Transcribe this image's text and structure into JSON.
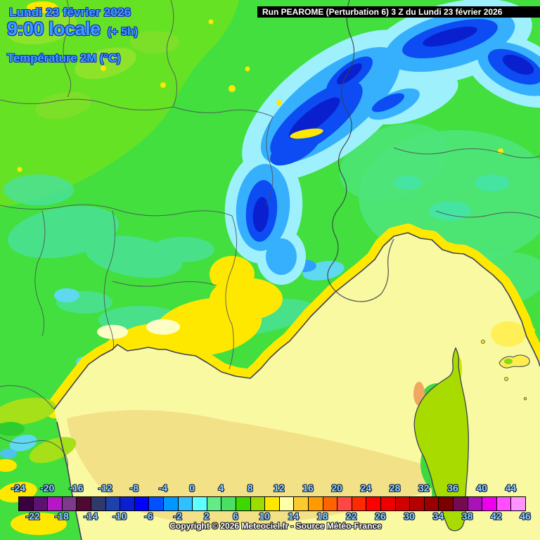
{
  "header": {
    "date_line": "Lundi 23 février 2026",
    "time_line": "9:00 locale",
    "offset_label": "(+ 5h)",
    "param_label": "Température 2M (°C)",
    "run_label": "Run PEAROME (Perturbation 6) 3 Z du Lundi 23 février 2026"
  },
  "footer": {
    "copyright": "Copyright © 2026 Meteociel.fr - Source Météo-France"
  },
  "colors": {
    "header_text": "#38a1ff",
    "header_outline": "#1c2db4",
    "legend_label": "#8ed4ff",
    "run_bar_bg": "#000000",
    "run_bar_text": "#ffffff"
  },
  "legend": {
    "top_labels": [
      "-24",
      "-20",
      "-16",
      "-12",
      "-8",
      "-4",
      "0",
      "4",
      "8",
      "12",
      "16",
      "20",
      "24",
      "28",
      "32",
      "36",
      "40",
      "44"
    ],
    "bottom_labels": [
      "-22",
      "-18",
      "-14",
      "-10",
      "-6",
      "-2",
      "2",
      "6",
      "10",
      "14",
      "18",
      "22",
      "26",
      "30",
      "34",
      "38",
      "42",
      "46"
    ],
    "cells": [
      {
        "min": -24,
        "max": -22,
        "color": "#3a0140"
      },
      {
        "min": -22,
        "max": -20,
        "color": "#5e1170"
      },
      {
        "min": -20,
        "max": -18,
        "color": "#b517c6"
      },
      {
        "min": -18,
        "max": -16,
        "color": "#7c3a8d"
      },
      {
        "min": -16,
        "max": -14,
        "color": "#500a31"
      },
      {
        "min": -14,
        "max": -12,
        "color": "#30386c"
      },
      {
        "min": -12,
        "max": -10,
        "color": "#1e41ae"
      },
      {
        "min": -10,
        "max": -8,
        "color": "#0a1ed2"
      },
      {
        "min": -8,
        "max": -6,
        "color": "#0202fc"
      },
      {
        "min": -6,
        "max": -4,
        "color": "#0051ff"
      },
      {
        "min": -4,
        "max": -2,
        "color": "#0098ff"
      },
      {
        "min": -2,
        "max": 0,
        "color": "#30bfff"
      },
      {
        "min": 0,
        "max": 2,
        "color": "#5dffff"
      },
      {
        "min": 2,
        "max": 4,
        "color": "#63eb85"
      },
      {
        "min": 4,
        "max": 6,
        "color": "#4adf63"
      },
      {
        "min": 6,
        "max": 8,
        "color": "#3cd800"
      },
      {
        "min": 8,
        "max": 10,
        "color": "#9cdc00"
      },
      {
        "min": 10,
        "max": 12,
        "color": "#ffe600"
      },
      {
        "min": 12,
        "max": 14,
        "color": "#ffffa8"
      },
      {
        "min": 14,
        "max": 16,
        "color": "#fbca2e"
      },
      {
        "min": 16,
        "max": 18,
        "color": "#ff9b00"
      },
      {
        "min": 18,
        "max": 20,
        "color": "#ff6400"
      },
      {
        "min": 20,
        "max": 22,
        "color": "#ff4747"
      },
      {
        "min": 22,
        "max": 24,
        "color": "#ff2b00"
      },
      {
        "min": 24,
        "max": 26,
        "color": "#fe0000"
      },
      {
        "min": 26,
        "max": 28,
        "color": "#ee0000"
      },
      {
        "min": 28,
        "max": 30,
        "color": "#d30000"
      },
      {
        "min": 30,
        "max": 32,
        "color": "#b60000"
      },
      {
        "min": 32,
        "max": 34,
        "color": "#9a0000"
      },
      {
        "min": 34,
        "max": 36,
        "color": "#7b0000"
      },
      {
        "min": 36,
        "max": 38,
        "color": "#750a52"
      },
      {
        "min": 38,
        "max": 40,
        "color": "#a812b6"
      },
      {
        "min": 40,
        "max": 42,
        "color": "#ee00ee"
      },
      {
        "min": 42,
        "max": 44,
        "color": "#ff4dff"
      },
      {
        "min": 44,
        "max": 46,
        "color": "#ff93ff"
      }
    ]
  }
}
